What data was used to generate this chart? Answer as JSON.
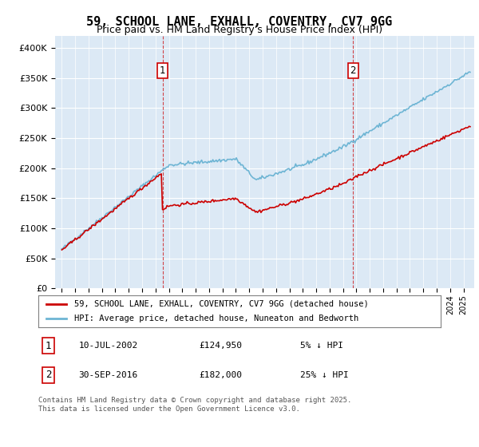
{
  "title": "59, SCHOOL LANE, EXHALL, COVENTRY, CV7 9GG",
  "subtitle": "Price paid vs. HM Land Registry's House Price Index (HPI)",
  "legend_entry1": "59, SCHOOL LANE, EXHALL, COVENTRY, CV7 9GG (detached house)",
  "legend_entry2": "HPI: Average price, detached house, Nuneaton and Bedworth",
  "annotation1_date": "10-JUL-2002",
  "annotation1_price": "£124,950",
  "annotation1_note": "5% ↓ HPI",
  "annotation2_date": "30-SEP-2016",
  "annotation2_price": "£182,000",
  "annotation2_note": "25% ↓ HPI",
  "footer": "Contains HM Land Registry data © Crown copyright and database right 2025.\nThis data is licensed under the Open Government Licence v3.0.",
  "hpi_color": "#6eb5d4",
  "price_color": "#cc0000",
  "vline_color": "#cc0000",
  "bg_color": "#dce9f5",
  "plot_bg": "#ffffff",
  "ylim": [
    0,
    420000
  ],
  "yticks": [
    0,
    50000,
    100000,
    150000,
    200000,
    250000,
    300000,
    350000,
    400000
  ],
  "year_start": 1995,
  "year_end": 2025
}
